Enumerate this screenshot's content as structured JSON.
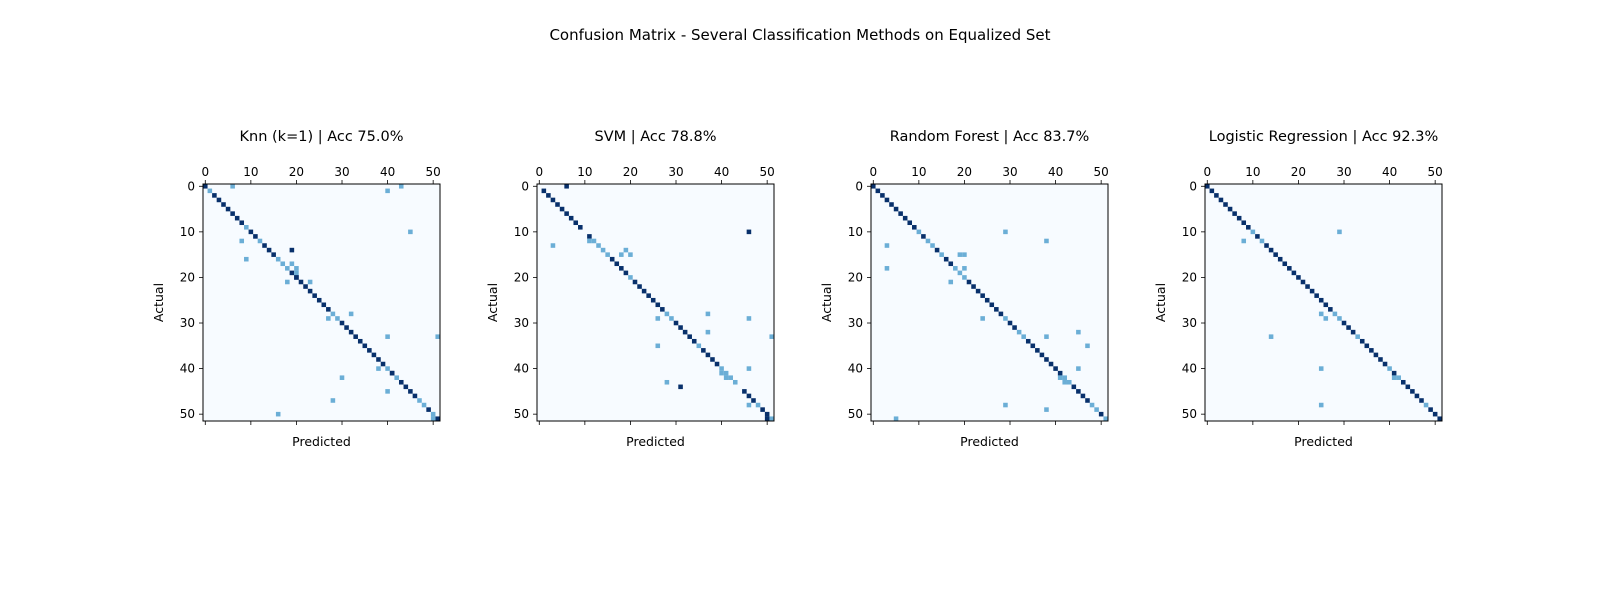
{
  "figure": {
    "title": "Confusion Matrix - Several Classification Methods on Equalized Set"
  },
  "colors": {
    "background": "#f7fbff",
    "mid": "#6baed6",
    "high": "#08306b",
    "frame": "#000000"
  },
  "chart_data": [
    {
      "type": "heatmap",
      "title": "Knn (k=1) | Acc 75.0%",
      "xlabel": "Predicted",
      "ylabel": "Actual",
      "n_classes": 52,
      "x_ticks": [
        0,
        10,
        20,
        30,
        40,
        50
      ],
      "y_ticks": [
        0,
        10,
        20,
        30,
        40,
        50
      ],
      "x_tick_position": "top",
      "diagonal_level": 2,
      "diagonal_exceptions": [
        [
          1,
          1
        ],
        [
          9,
          1
        ],
        [
          12,
          1
        ],
        [
          16,
          1
        ],
        [
          17,
          1
        ],
        [
          18,
          1
        ],
        [
          28,
          1
        ],
        [
          29,
          1
        ],
        [
          40,
          1
        ],
        [
          42,
          1
        ],
        [
          47,
          1
        ],
        [
          48,
          1
        ],
        [
          50,
          1
        ]
      ],
      "off_diagonal": [
        [
          0,
          6,
          1
        ],
        [
          0,
          43,
          1
        ],
        [
          1,
          40,
          1
        ],
        [
          10,
          45,
          1
        ],
        [
          12,
          8,
          1
        ],
        [
          14,
          19,
          2
        ],
        [
          16,
          9,
          1
        ],
        [
          17,
          19,
          1
        ],
        [
          18,
          20,
          1
        ],
        [
          19,
          20,
          1
        ],
        [
          20,
          20,
          2
        ],
        [
          21,
          18,
          1
        ],
        [
          21,
          23,
          1
        ],
        [
          28,
          32,
          1
        ],
        [
          29,
          27,
          1
        ],
        [
          33,
          40,
          1
        ],
        [
          40,
          38,
          1
        ],
        [
          41,
          41,
          2
        ],
        [
          42,
          30,
          1
        ],
        [
          45,
          40,
          1
        ],
        [
          47,
          28,
          1
        ],
        [
          50,
          16,
          1
        ],
        [
          51,
          50,
          1
        ],
        [
          33,
          51,
          1
        ]
      ]
    },
    {
      "type": "heatmap",
      "title": "SVM | Acc 78.8%",
      "xlabel": "Predicted",
      "ylabel": "Actual",
      "n_classes": 52,
      "x_ticks": [
        0,
        10,
        20,
        30,
        40,
        50
      ],
      "y_ticks": [
        0,
        10,
        20,
        30,
        40,
        50
      ],
      "x_tick_position": "top",
      "diagonal_level": 2,
      "diagonal_exceptions": [
        [
          0,
          0
        ],
        [
          10,
          0
        ],
        [
          12,
          1
        ],
        [
          13,
          1
        ],
        [
          14,
          1
        ],
        [
          15,
          1
        ],
        [
          20,
          1
        ],
        [
          28,
          1
        ],
        [
          29,
          1
        ],
        [
          35,
          1
        ],
        [
          40,
          1
        ],
        [
          41,
          1
        ],
        [
          42,
          1
        ],
        [
          43,
          1
        ],
        [
          44,
          0
        ],
        [
          48,
          1
        ],
        [
          51,
          1
        ]
      ],
      "off_diagonal": [
        [
          0,
          6,
          2
        ],
        [
          10,
          46,
          2
        ],
        [
          12,
          11,
          1
        ],
        [
          13,
          3,
          1
        ],
        [
          14,
          19,
          1
        ],
        [
          15,
          18,
          1
        ],
        [
          15,
          20,
          1
        ],
        [
          28,
          37,
          1
        ],
        [
          29,
          26,
          1
        ],
        [
          29,
          46,
          1
        ],
        [
          32,
          37,
          1
        ],
        [
          33,
          51,
          1
        ],
        [
          35,
          26,
          1
        ],
        [
          40,
          46,
          1
        ],
        [
          41,
          40,
          1
        ],
        [
          42,
          41,
          1
        ],
        [
          43,
          28,
          1
        ],
        [
          44,
          31,
          2
        ],
        [
          51,
          50,
          2
        ],
        [
          48,
          46,
          1
        ]
      ]
    },
    {
      "type": "heatmap",
      "title": "Random Forest | Acc 83.7%",
      "xlabel": "Predicted",
      "ylabel": "Actual",
      "n_classes": 52,
      "x_ticks": [
        0,
        10,
        20,
        30,
        40,
        50
      ],
      "y_ticks": [
        0,
        10,
        20,
        30,
        40,
        50
      ],
      "x_tick_position": "top",
      "diagonal_level": 2,
      "diagonal_exceptions": [
        [
          10,
          1
        ],
        [
          12,
          1
        ],
        [
          13,
          1
        ],
        [
          15,
          1
        ],
        [
          18,
          1
        ],
        [
          19,
          1
        ],
        [
          20,
          1
        ],
        [
          29,
          1
        ],
        [
          32,
          1
        ],
        [
          33,
          1
        ],
        [
          42,
          1
        ],
        [
          43,
          1
        ],
        [
          48,
          1
        ],
        [
          49,
          1
        ],
        [
          51,
          1
        ]
      ],
      "off_diagonal": [
        [
          10,
          29,
          1
        ],
        [
          12,
          38,
          1
        ],
        [
          13,
          3,
          1
        ],
        [
          15,
          19,
          1
        ],
        [
          15,
          20,
          1
        ],
        [
          18,
          3,
          1
        ],
        [
          18,
          20,
          1
        ],
        [
          21,
          17,
          1
        ],
        [
          29,
          24,
          1
        ],
        [
          32,
          45,
          1
        ],
        [
          33,
          38,
          1
        ],
        [
          35,
          47,
          1
        ],
        [
          40,
          45,
          1
        ],
        [
          42,
          41,
          1
        ],
        [
          43,
          42,
          1
        ],
        [
          48,
          29,
          1
        ],
        [
          49,
          38,
          1
        ],
        [
          51,
          5,
          1
        ]
      ]
    },
    {
      "type": "heatmap",
      "title": "Logistic Regression | Acc 92.3%",
      "xlabel": "Predicted",
      "ylabel": "Actual",
      "n_classes": 52,
      "x_ticks": [
        0,
        10,
        20,
        30,
        40,
        50
      ],
      "y_ticks": [
        0,
        10,
        20,
        30,
        40,
        50
      ],
      "x_tick_position": "top",
      "diagonal_level": 2,
      "diagonal_exceptions": [
        [
          10,
          1
        ],
        [
          12,
          1
        ],
        [
          28,
          1
        ],
        [
          29,
          1
        ],
        [
          33,
          1
        ],
        [
          40,
          1
        ],
        [
          42,
          1
        ],
        [
          48,
          1
        ]
      ],
      "off_diagonal": [
        [
          10,
          29,
          1
        ],
        [
          12,
          8,
          1
        ],
        [
          29,
          26,
          1
        ],
        [
          33,
          14,
          1
        ],
        [
          40,
          25,
          1
        ],
        [
          42,
          41,
          1
        ],
        [
          48,
          25,
          1
        ],
        [
          28,
          25,
          1
        ]
      ]
    }
  ]
}
